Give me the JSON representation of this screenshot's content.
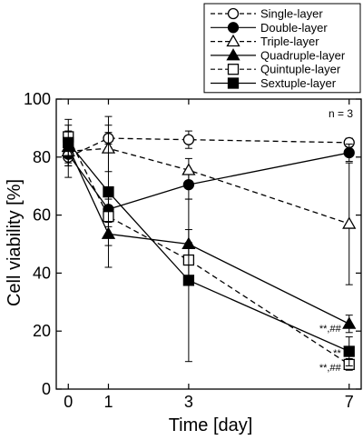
{
  "chart_data": {
    "type": "line",
    "xlabel": "Time [day]",
    "ylabel": "Cell viability [%]",
    "xlim": [
      -0.3,
      7.3
    ],
    "ylim": [
      0,
      100
    ],
    "x_ticks": [
      0,
      1,
      3,
      7
    ],
    "y_ticks": [
      0,
      20,
      40,
      60,
      80,
      100
    ],
    "legend_position": "top-right, outside plot",
    "note": "n = 3",
    "x": [
      0,
      1,
      3,
      7
    ],
    "series": [
      {
        "name": "Single-layer",
        "marker": "circle-open",
        "dash": true,
        "values": [
          80,
          86.5,
          86,
          85
        ],
        "err": [
          3,
          2,
          3,
          1.5
        ]
      },
      {
        "name": "Double-layer",
        "marker": "circle-filled",
        "dash": false,
        "values": [
          81,
          62,
          70.5,
          81.5
        ],
        "err": [
          8,
          6,
          5,
          3
        ]
      },
      {
        "name": "Triple-layer",
        "marker": "triangle-open",
        "dash": true,
        "values": [
          82,
          83,
          75.5,
          57
        ],
        "err": [
          4,
          8,
          4,
          21
        ]
      },
      {
        "name": "Quadruple-layer",
        "marker": "triangle-filled",
        "dash": false,
        "values": [
          83.5,
          53.5,
          50,
          22.5
        ],
        "err": [
          3,
          4,
          5,
          3
        ]
      },
      {
        "name": "Quintuple-layer",
        "marker": "square-open",
        "dash": true,
        "values": [
          87,
          59.5,
          44.5,
          8.5
        ],
        "err": [
          4,
          6,
          6,
          2
        ]
      },
      {
        "name": "Sextuple-layer",
        "marker": "square-filled",
        "dash": false,
        "values": [
          85,
          68,
          37.5,
          13
        ],
        "err": [
          8,
          26,
          28,
          5
        ]
      }
    ],
    "annotations": [
      {
        "text": "**,##",
        "x": 7,
        "y": 21,
        "align": "left-of-point"
      },
      {
        "text": "**",
        "x": 7,
        "y": 12.5,
        "align": "left-of-point"
      },
      {
        "text": "**,##",
        "x": 7,
        "y": 7.5,
        "align": "left-of-point"
      }
    ]
  }
}
